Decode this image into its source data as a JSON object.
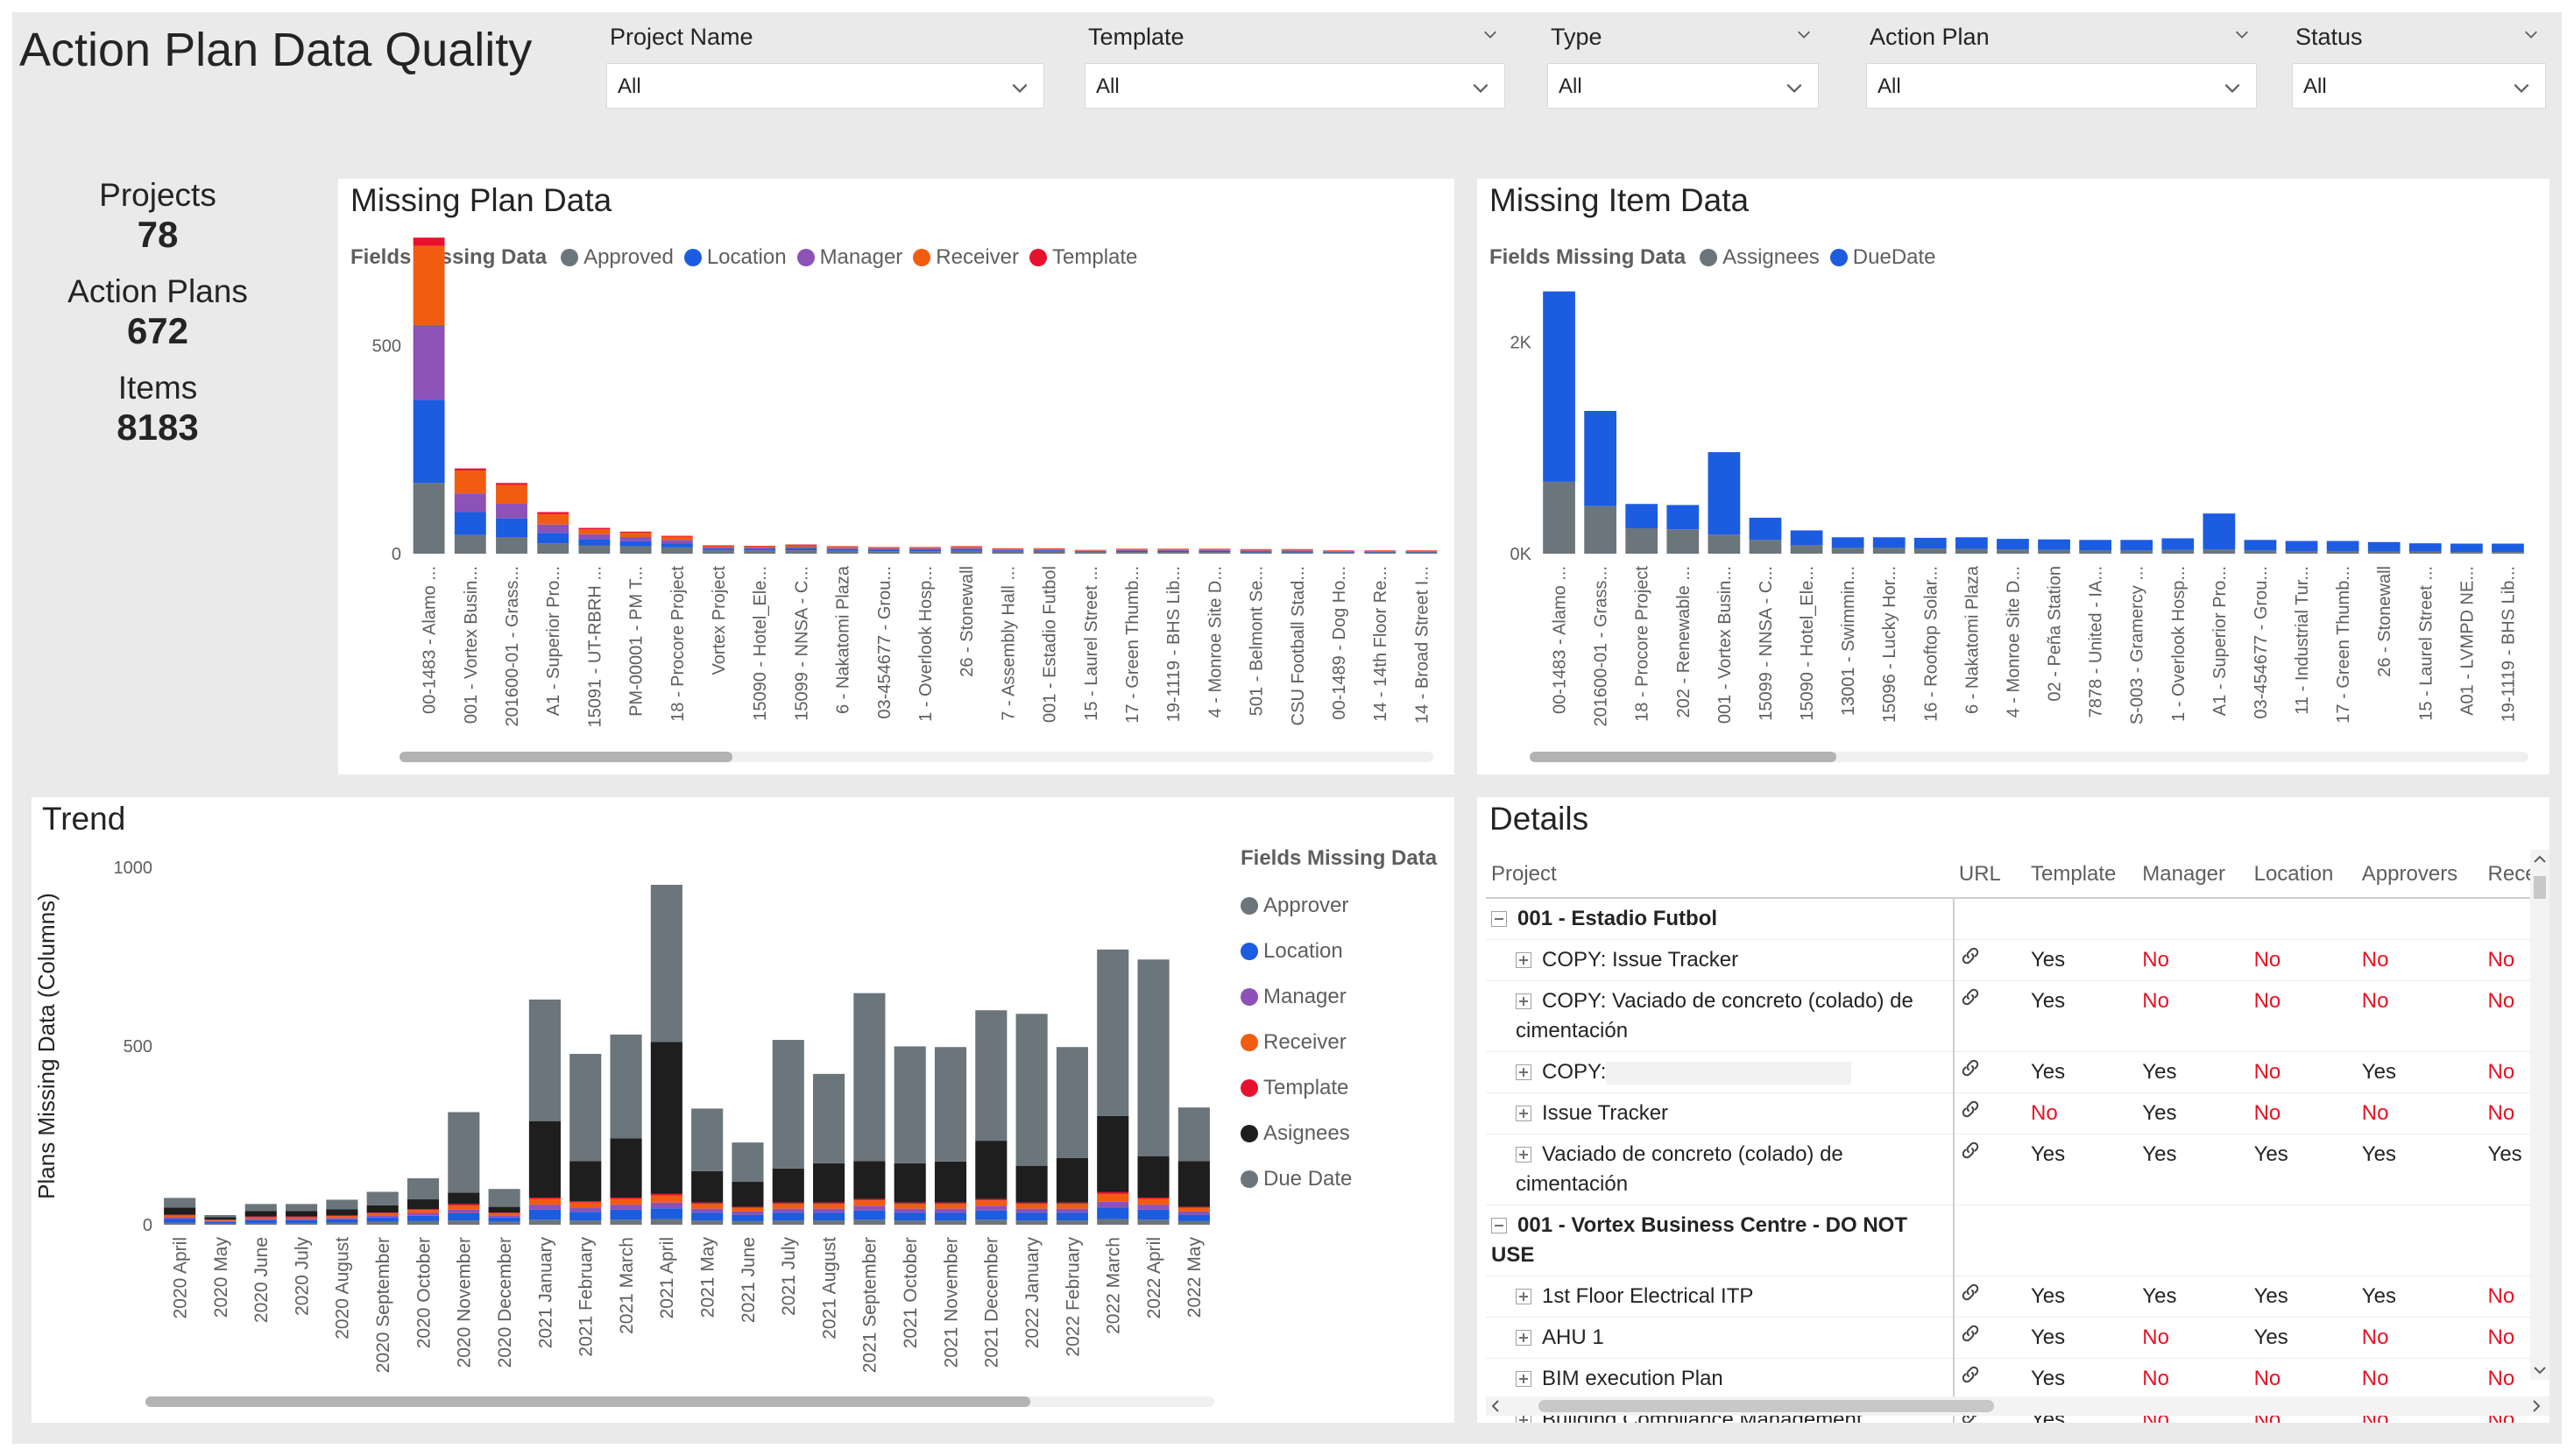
{
  "title": "Action Plan Data Quality",
  "slicers": [
    {
      "label": "Project Name",
      "value": "All"
    },
    {
      "label": "Template",
      "value": "All"
    },
    {
      "label": "Type",
      "value": "All"
    },
    {
      "label": "Action Plan",
      "value": "All"
    },
    {
      "label": "Status",
      "value": "All"
    }
  ],
  "kpis": {
    "projects_label": "Projects",
    "projects_value": "78",
    "plans_label": "Action Plans",
    "plans_value": "672",
    "items_label": "Items",
    "items_value": "8183"
  },
  "colors": {
    "grey": "#6b757c",
    "blue": "#1b5ce0",
    "purple": "#8c52b8",
    "orange": "#f25c10",
    "red": "#e8112d",
    "black": "#1e1e1e"
  },
  "missing_plan": {
    "title": "Missing Plan Data",
    "legend_title": "Fields Missing Data",
    "legend": [
      {
        "name": "Approved",
        "color": "#6b757c"
      },
      {
        "name": "Location",
        "color": "#1b5ce0"
      },
      {
        "name": "Manager",
        "color": "#8c52b8"
      },
      {
        "name": "Receiver",
        "color": "#f25c10"
      },
      {
        "name": "Template",
        "color": "#e8112d"
      }
    ]
  },
  "missing_item": {
    "title": "Missing Item Data",
    "legend_title": "Fields Missing Data",
    "legend": [
      {
        "name": "Assignees",
        "color": "#6b757c"
      },
      {
        "name": "DueDate",
        "color": "#1b5ce0"
      }
    ]
  },
  "trend": {
    "title": "Trend",
    "legend_title": "Fields Missing Data",
    "legend": [
      {
        "name": "Approver",
        "color": "#6b757c"
      },
      {
        "name": "Location",
        "color": "#1b5ce0"
      },
      {
        "name": "Manager",
        "color": "#8c52b8"
      },
      {
        "name": "Receiver",
        "color": "#f25c10"
      },
      {
        "name": "Template",
        "color": "#e8112d"
      },
      {
        "name": "Asignees",
        "color": "#1e1e1e"
      },
      {
        "name": "Due Date",
        "color": "#6b757c"
      }
    ]
  },
  "chart_data": [
    {
      "type": "bar",
      "stacked": true,
      "title": "Missing Plan Data",
      "ylim": [
        0,
        750
      ],
      "yticks": [
        0,
        500
      ],
      "categories": [
        "00-1483 - Alamo ...",
        "001 - Vortex Busin...",
        "201600-01 - Grass...",
        "A1 - Superior Pro...",
        "15091 - UT-RBRH ...",
        "PM-00001 - PM T...",
        "18 - Procore Project",
        "Vortex Project",
        "15090 - Hotel_Ele...",
        "15099 - NNSA - C...",
        "6 - Nakatomi Plaza",
        "03-454677 - Grou...",
        "1 - Overlook Hosp...",
        "26 - Stonewall",
        "7 - Assembly Hall ...",
        "001 - Estadio Futbol",
        "15 - Laurel Street ...",
        "17 - Green Thumb...",
        "19-1119 - BHS Lib...",
        "4 - Monroe Site D...",
        "501 - Belmont Se...",
        "CSU Football Stad...",
        "00-1489 - Dog Ho...",
        "14 - 14th Floor Re...",
        "14 - Broad Street I..."
      ],
      "series": [
        {
          "name": "Approved",
          "values": [
            170,
            45,
            40,
            25,
            20,
            18,
            15,
            8,
            8,
            8,
            7,
            6,
            6,
            7,
            5,
            5,
            4,
            4,
            4,
            4,
            3,
            3,
            3,
            3,
            3
          ]
        },
        {
          "name": "Location",
          "values": [
            200,
            55,
            45,
            25,
            15,
            12,
            10,
            4,
            4,
            5,
            4,
            4,
            4,
            4,
            3,
            3,
            2,
            3,
            3,
            3,
            3,
            3,
            2,
            2,
            2
          ]
        },
        {
          "name": "Manager",
          "values": [
            180,
            45,
            35,
            20,
            12,
            10,
            8,
            3,
            3,
            4,
            3,
            3,
            3,
            3,
            2,
            2,
            1,
            2,
            2,
            2,
            2,
            2,
            1,
            1,
            1
          ]
        },
        {
          "name": "Receiver",
          "values": [
            190,
            55,
            45,
            25,
            12,
            10,
            8,
            3,
            3,
            3,
            3,
            2,
            2,
            3,
            2,
            2,
            1,
            2,
            2,
            2,
            2,
            2,
            1,
            1,
            1
          ]
        },
        {
          "name": "Template",
          "values": [
            20,
            5,
            5,
            5,
            3,
            3,
            2,
            2,
            1,
            2,
            1,
            1,
            1,
            1,
            1,
            1,
            1,
            1,
            1,
            1,
            1,
            1,
            1,
            1,
            1
          ]
        }
      ]
    },
    {
      "type": "bar",
      "stacked": true,
      "title": "Missing Item Data",
      "ylim": [
        0,
        2800
      ],
      "yticks": [
        {
          "value": 0,
          "label": "0K"
        },
        {
          "value": 2000,
          "label": "2K"
        }
      ],
      "categories": [
        "00-1483 - Alamo ...",
        "201600-01 - Grass...",
        "18 - Procore Project",
        "202 - Renewable ...",
        "001 - Vortex Busin...",
        "15099 - NNSA - C...",
        "15090 - Hotel_Ele...",
        "13001 - Swimmin...",
        "15096 - Lucky Hor...",
        "16 - Rooftop Solar...",
        "6 - Nakatomi Plaza",
        "4 - Monroe Site D...",
        "02 - Peña Station",
        "7878 - United - IA...",
        "S-003 - Gramercy ...",
        "1 - Overlook Hosp...",
        "A1 - Superior Pro...",
        "03-454677 - Grou...",
        "11 - Industrial Tur...",
        "17 - Green Thumb...",
        "26 - Stonewall",
        "15 - Laurel Street ...",
        "A01 - LVMPD NE...",
        "19-1119 - BHS Lib..."
      ],
      "series": [
        {
          "name": "Assignees",
          "values": [
            680,
            450,
            240,
            230,
            180,
            130,
            80,
            55,
            55,
            50,
            45,
            40,
            35,
            30,
            30,
            35,
            40,
            30,
            25,
            25,
            20,
            18,
            15,
            15
          ]
        },
        {
          "name": "DueDate",
          "values": [
            1800,
            900,
            230,
            230,
            780,
            210,
            140,
            100,
            100,
            100,
            110,
            100,
            100,
            100,
            100,
            110,
            340,
            100,
            95,
            95,
            90,
            80,
            80,
            80
          ]
        }
      ]
    },
    {
      "type": "bar",
      "stacked": true,
      "title": "Trend",
      "ylabel": "Plans Missing Data (Columns)",
      "ylim": [
        0,
        1000
      ],
      "yticks": [
        0,
        500,
        1000
      ],
      "categories": [
        "2020 April",
        "2020 May",
        "2020 June",
        "2020 July",
        "2020 August",
        "2020 September",
        "2020 October",
        "2020 November",
        "2020 December",
        "2021 January",
        "2021 February",
        "2021 March",
        "2021 April",
        "2021 May",
        "2021 June",
        "2021 July",
        "2021 August",
        "2021 September",
        "2021 October",
        "2021 November",
        "2021 December",
        "2022 January",
        "2022 February",
        "2022 March",
        "2022 April",
        "2022 May"
      ],
      "series": [
        {
          "name": "Approver",
          "values": [
            6,
            3,
            5,
            5,
            6,
            8,
            10,
            12,
            8,
            14,
            12,
            14,
            16,
            12,
            10,
            12,
            12,
            14,
            12,
            12,
            14,
            12,
            12,
            16,
            14,
            10
          ]
        },
        {
          "name": "Location",
          "values": [
            10,
            5,
            8,
            8,
            9,
            12,
            15,
            20,
            12,
            28,
            24,
            28,
            30,
            22,
            18,
            22,
            22,
            26,
            22,
            22,
            26,
            22,
            22,
            32,
            28,
            18
          ]
        },
        {
          "name": "Manager",
          "values": [
            5,
            2,
            4,
            4,
            4,
            6,
            8,
            10,
            6,
            14,
            12,
            14,
            16,
            11,
            9,
            11,
            11,
            13,
            11,
            11,
            13,
            11,
            11,
            16,
            14,
            9
          ]
        },
        {
          "name": "Receiver",
          "values": [
            5,
            3,
            4,
            4,
            5,
            6,
            8,
            12,
            6,
            16,
            14,
            16,
            20,
            13,
            10,
            13,
            13,
            15,
            13,
            13,
            15,
            13,
            13,
            22,
            16,
            10
          ]
        },
        {
          "name": "Template",
          "values": [
            2,
            1,
            2,
            2,
            2,
            2,
            3,
            4,
            2,
            4,
            4,
            4,
            5,
            4,
            3,
            4,
            4,
            4,
            4,
            4,
            4,
            4,
            4,
            5,
            4,
            3
          ]
        },
        {
          "name": "Asignees",
          "values": [
            20,
            7,
            15,
            15,
            17,
            20,
            27,
            32,
            16,
            214,
            112,
            166,
            424,
            88,
            70,
            95,
            110,
            106,
            110,
            115,
            163,
            103,
            125,
            213,
            116,
            128
          ]
        },
        {
          "name": "Due Date",
          "values": [
            27,
            6,
            20,
            20,
            27,
            38,
            59,
            225,
            50,
            340,
            300,
            290,
            440,
            175,
            110,
            360,
            250,
            470,
            327,
            320,
            365,
            425,
            310,
            466,
            550,
            150
          ]
        }
      ]
    }
  ],
  "details": {
    "title": "Details",
    "columns": [
      "Project",
      "URL",
      "Template",
      "Manager",
      "Location",
      "Approvers",
      "Recei"
    ],
    "rows": [
      {
        "kind": "group",
        "project": "001 - Estadio Futbol",
        "cells": [
          "",
          "",
          "",
          "",
          "",
          ""
        ]
      },
      {
        "kind": "item",
        "project": "COPY: Issue Tracker",
        "url": "link",
        "cells": [
          "Yes",
          "No",
          "No",
          "No",
          "No"
        ]
      },
      {
        "kind": "item",
        "project": "COPY: Vaciado de concreto (colado) de cimentación",
        "url": "link",
        "cells": [
          "Yes",
          "No",
          "No",
          "No",
          "No"
        ]
      },
      {
        "kind": "item",
        "project": "COPY:",
        "redacted": true,
        "url": "link",
        "cells": [
          "Yes",
          "Yes",
          "No",
          "Yes",
          "No"
        ]
      },
      {
        "kind": "item",
        "project": "Issue Tracker",
        "url": "link",
        "cells": [
          "No",
          "Yes",
          "No",
          "No",
          "No"
        ]
      },
      {
        "kind": "item",
        "project": "Vaciado de concreto (colado) de cimentación",
        "url": "link",
        "cells": [
          "Yes",
          "Yes",
          "Yes",
          "Yes",
          "Yes"
        ]
      },
      {
        "kind": "group",
        "project": "001 - Vortex Business Centre - DO NOT USE",
        "cells": [
          "",
          "",
          "",
          "",
          "",
          ""
        ]
      },
      {
        "kind": "item",
        "project": "1st Floor Electrical ITP",
        "url": "link",
        "cells": [
          "Yes",
          "Yes",
          "Yes",
          "Yes",
          "No"
        ]
      },
      {
        "kind": "item",
        "project": "AHU 1",
        "url": "link",
        "cells": [
          "Yes",
          "No",
          "Yes",
          "No",
          "No"
        ]
      },
      {
        "kind": "item",
        "project": "BIM execution Plan",
        "url": "link",
        "cells": [
          "Yes",
          "No",
          "No",
          "No",
          "No"
        ]
      },
      {
        "kind": "item",
        "project": "Building Compliance Management",
        "url": "link",
        "cells": [
          "Yes",
          "No",
          "No",
          "No",
          "No"
        ]
      }
    ]
  }
}
